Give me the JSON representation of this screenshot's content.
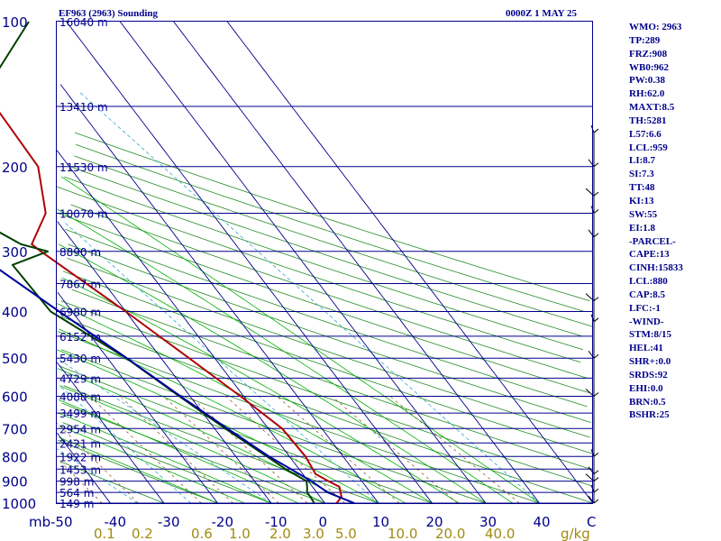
{
  "header": {
    "station": "EF963 (2963) Sounding",
    "time": "0000Z  1 MAY 25"
  },
  "indices": [
    "WMO: 2963",
    "TP:289",
    "FRZ:908",
    "WB0:962",
    "PW:0.38",
    "RH:62.0",
    "MAXT:8.5",
    "TH:5281",
    "L57:6.6",
    "LCL:959",
    "LI:8.7",
    "SI:7.3",
    "TT:48",
    "KI:13",
    "SW:55",
    "EI:1.8",
    "-PARCEL-",
    "CAPE:13",
    "CINH:15833",
    "LCL:880",
    "CAP:8.5",
    "LFC:-1",
    "-WIND-",
    "STM:8/15",
    "HEL:41",
    "SHR+:0.0",
    "SRDS:92",
    "EHI:0.0",
    "BRN:0.5",
    "BSHR:25"
  ],
  "colors": {
    "frame": "#00008b",
    "isobar": "#00008b",
    "isotherm": "#00008b",
    "dry_adiabat": "#228b22",
    "moist_adiabat": "#00b000",
    "mixing_ratio": "#8b4513",
    "mixing_ratio_label": "#a08a10",
    "temperature": "#b00000",
    "dewpoint": "#004000",
    "wetbulb": "#0000a0",
    "secondary": "#30a8d0"
  },
  "chart_data": {
    "type": "line",
    "title": "EF963 (2963) Sounding",
    "xlabel": "",
    "ylabel": "mb",
    "xlim": [
      -50,
      50
    ],
    "ylim": [
      1000,
      100
    ],
    "y_scale": "log",
    "pressure_ticks": [
      100,
      200,
      300,
      400,
      500,
      600,
      700,
      800,
      900,
      1000
    ],
    "temperature_tick_labels": [
      "-50",
      "-40",
      "-30",
      "-20",
      "-10",
      "0",
      "10",
      "20",
      "30",
      "40",
      "C"
    ],
    "mixing_ratio_labels": [
      "0.1",
      "0.2",
      "0.6",
      "1.0",
      "2.0",
      "3.0",
      "5.0",
      "10.0",
      "20.0",
      "40.0",
      "g/kg"
    ],
    "height_labels": [
      {
        "p": 100,
        "label": "16040 m"
      },
      {
        "p": 150,
        "label": "13410 m"
      },
      {
        "p": 200,
        "label": "11530 m"
      },
      {
        "p": 250,
        "label": "10070 m"
      },
      {
        "p": 300,
        "label": "8890 m"
      },
      {
        "p": 350,
        "label": "7867 m"
      },
      {
        "p": 400,
        "label": "6980 m"
      },
      {
        "p": 450,
        "label": "6152 m"
      },
      {
        "p": 500,
        "label": "5430 m"
      },
      {
        "p": 550,
        "label": "4729 m"
      },
      {
        "p": 600,
        "label": "4088 m"
      },
      {
        "p": 650,
        "label": "3499 m"
      },
      {
        "p": 700,
        "label": "2954 m"
      },
      {
        "p": 750,
        "label": "2421 m"
      },
      {
        "p": 800,
        "label": "1922 m"
      },
      {
        "p": 850,
        "label": "1453 m"
      },
      {
        "p": 900,
        "label": "998 m"
      },
      {
        "p": 950,
        "label": "564 m"
      },
      {
        "p": 1000,
        "label": "149 m"
      }
    ],
    "series": [
      {
        "key": "temperature",
        "points": [
          [
            1000,
            2.2
          ],
          [
            970,
            4.0
          ],
          [
            925,
            5.0
          ],
          [
            900,
            3.8
          ],
          [
            870,
            2.4
          ],
          [
            800,
            3.0
          ],
          [
            700,
            2.6
          ],
          [
            600,
            -0.6
          ],
          [
            500,
            -4.8
          ],
          [
            400,
            -10.0
          ],
          [
            300,
            -17.3
          ],
          [
            290,
            -18.0
          ],
          [
            250,
            -11.0
          ],
          [
            200,
            -5.8
          ],
          [
            150,
            -5.3
          ],
          [
            100,
            -4.0
          ]
        ]
      },
      {
        "key": "dewpoint",
        "points": [
          [
            1000,
            -2.0
          ],
          [
            970,
            -1.8
          ],
          [
            950,
            -1.8
          ],
          [
            925,
            -1.0
          ],
          [
            900,
            -0.3
          ],
          [
            850,
            -2.5
          ],
          [
            800,
            -4.2
          ],
          [
            700,
            -8.0
          ],
          [
            600,
            -12.0
          ],
          [
            500,
            -16.5
          ],
          [
            400,
            -24.0
          ],
          [
            350,
            -24.3
          ],
          [
            320,
            -24.5
          ],
          [
            300,
            -16.0
          ],
          [
            290,
            -20.0
          ],
          [
            250,
            -26.0
          ],
          [
            200,
            -23.5
          ],
          [
            150,
            -9.0
          ],
          [
            100,
            13.0
          ]
        ]
      },
      {
        "key": "wetbulb",
        "points": [
          [
            1000,
            5.5
          ],
          [
            950,
            2.0
          ],
          [
            900,
            0.6
          ],
          [
            850,
            -1.5
          ],
          [
            800,
            -3.8
          ],
          [
            700,
            -7.6
          ],
          [
            600,
            -11.8
          ],
          [
            500,
            -16.4
          ],
          [
            400,
            -22.4
          ],
          [
            300,
            -29.9
          ],
          [
            250,
            -34.8
          ],
          [
            200,
            -40.0
          ],
          [
            150,
            -45.3
          ],
          [
            100,
            -53.0
          ]
        ]
      }
    ],
    "mixing_ratio_values": [
      0.1,
      0.2,
      0.6,
      1.0,
      2.0,
      3.0,
      5.0,
      10.0,
      20.0,
      40.0
    ]
  }
}
